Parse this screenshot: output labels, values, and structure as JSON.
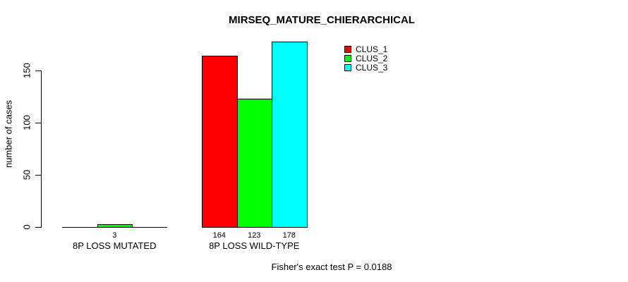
{
  "title": "MIRSEQ_MATURE_CHIERARCHICAL",
  "footer": "Fisher's exact test P = 0.0188",
  "y_axis": {
    "label": "number of cases",
    "ticks": [
      0,
      50,
      100,
      150
    ]
  },
  "legend": {
    "items": [
      {
        "label": "CLUS_1",
        "color": "#ff0000"
      },
      {
        "label": "CLUS_2",
        "color": "#00ff00"
      },
      {
        "label": "CLUS_3",
        "color": "#00ffff"
      }
    ]
  },
  "chart_data": {
    "type": "bar",
    "title": "MIRSEQ_MATURE_CHIERARCHICAL",
    "categories": [
      "8P LOSS MUTATED",
      "8P LOSS WILD-TYPE"
    ],
    "series": [
      {
        "name": "CLUS_1",
        "color": "#ff0000",
        "values": [
          0,
          164
        ]
      },
      {
        "name": "CLUS_2",
        "color": "#00ff00",
        "values": [
          3,
          123
        ]
      },
      {
        "name": "CLUS_3",
        "color": "#00ffff",
        "values": [
          0,
          178
        ]
      }
    ],
    "xlabel": "",
    "ylabel": "number of cases",
    "ylim": [
      0,
      150
    ],
    "yticks": [
      0,
      50,
      100,
      150
    ],
    "grid": false,
    "legend_position": "top-right-inside",
    "annotation": "Fisher's exact test P = 0.0188"
  }
}
